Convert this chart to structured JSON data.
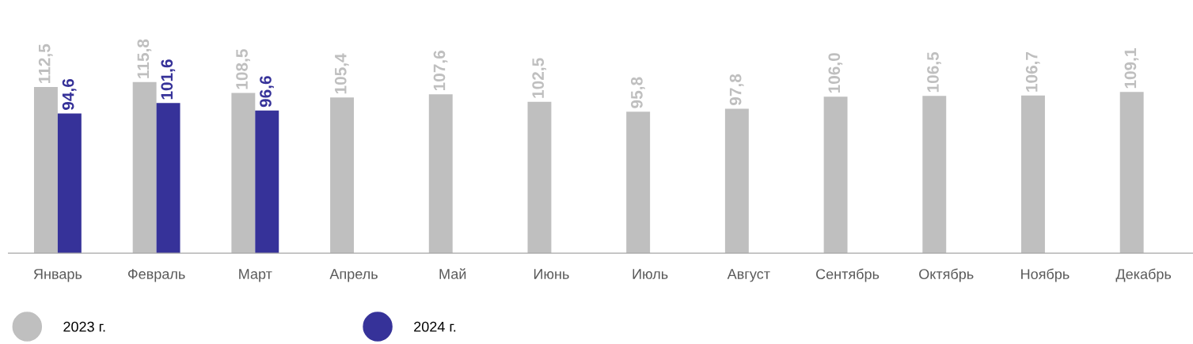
{
  "chart_data": {
    "type": "bar",
    "categories": [
      "Январь",
      "Февраль",
      "Март",
      "Апрель",
      "Май",
      "Июнь",
      "Июль",
      "Август",
      "Сентябрь",
      "Октябрь",
      "Ноябрь",
      "Декабрь"
    ],
    "series": [
      {
        "name": "2023 г.",
        "color": "#bfbfbf",
        "values": [
          112.5,
          115.8,
          108.5,
          105.4,
          107.6,
          102.5,
          95.8,
          97.8,
          106.0,
          106.5,
          106.7,
          109.1
        ],
        "value_labels": [
          "112,5",
          "115,8",
          "108,5",
          "105,4",
          "107,6",
          "102,5",
          "95,8",
          "97,8",
          "106,0",
          "106,5",
          "106,7",
          "109,1"
        ]
      },
      {
        "name": "2024 г.",
        "color": "#363299",
        "values": [
          94.6,
          101.6,
          96.6,
          null,
          null,
          null,
          null,
          null,
          null,
          null,
          null,
          null
        ],
        "value_labels": [
          "94,6",
          "101,6",
          "96,6",
          null,
          null,
          null,
          null,
          null,
          null,
          null,
          null,
          null
        ]
      }
    ],
    "legend": "bottom left",
    "grid": false
  }
}
